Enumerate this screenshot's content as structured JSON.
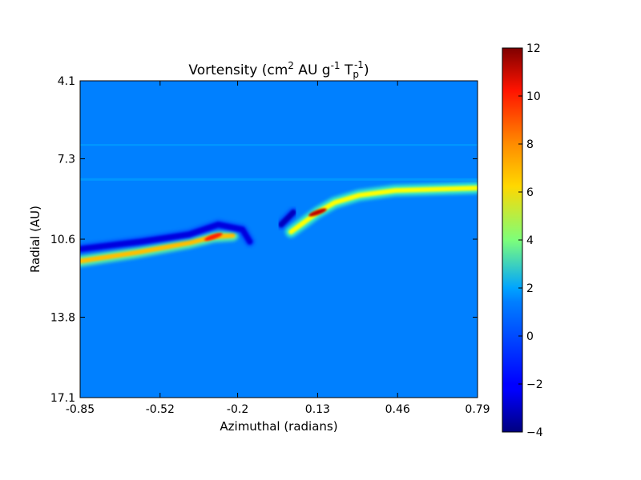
{
  "chart_data": {
    "type": "heatmap",
    "title": {
      "prefix": "Vortensity (cm",
      "sup1": "2",
      "mid": " AU g",
      "sup2": "-1",
      "mid2": " T",
      "sub": "p",
      "sup3": "-1",
      "suffix": ")"
    },
    "xlabel": "Azimuthal (radians)",
    "ylabel": "Radial (AU)",
    "xlim": [
      -0.85,
      0.79
    ],
    "ylim": [
      4.1,
      17.1
    ],
    "y_inverted": true,
    "x_ticks": [
      {
        "value": -0.85,
        "label": "-0.85"
      },
      {
        "value": -0.52,
        "label": "-0.52"
      },
      {
        "value": -0.2,
        "label": "-0.2"
      },
      {
        "value": 0.13,
        "label": "0.13"
      },
      {
        "value": 0.46,
        "label": "0.46"
      },
      {
        "value": 0.79,
        "label": "0.79"
      }
    ],
    "y_ticks": [
      {
        "value": 4.1,
        "label": "4.1"
      },
      {
        "value": 7.3,
        "label": "7.3"
      },
      {
        "value": 10.6,
        "label": "10.6"
      },
      {
        "value": 13.8,
        "label": "13.8"
      },
      {
        "value": 17.1,
        "label": "17.1"
      }
    ],
    "colorbar": {
      "colormap": "jet",
      "min": -4,
      "max": 12,
      "ticks": [
        {
          "value": 12,
          "label": "12"
        },
        {
          "value": 10,
          "label": "10"
        },
        {
          "value": 8,
          "label": "8"
        },
        {
          "value": 6,
          "label": "6"
        },
        {
          "value": 4,
          "label": "4"
        },
        {
          "value": 2,
          "label": "2"
        },
        {
          "value": 0,
          "label": "0"
        },
        {
          "value": -2,
          "label": "−2"
        },
        {
          "value": -4,
          "label": "−4"
        }
      ]
    },
    "background_value": 0.3,
    "features": [
      {
        "desc": "main spiral arm high-vortensity streak",
        "x": [
          -0.85,
          -0.62,
          -0.4,
          -0.3,
          -0.22
        ],
        "y": [
          11.5,
          11.15,
          10.75,
          10.5,
          10.45
        ],
        "value": 7,
        "peak_value": 9.5
      },
      {
        "desc": "low-vortensity ridge left",
        "x": [
          -0.85,
          -0.6,
          -0.4,
          -0.28,
          -0.18,
          -0.15
        ],
        "y": [
          11.0,
          10.7,
          10.4,
          10.0,
          10.2,
          10.7
        ],
        "value": -2.5
      },
      {
        "desc": "central blob",
        "x": [
          -0.02,
          0.03
        ],
        "y": [
          10.0,
          9.5
        ],
        "value": -3
      },
      {
        "desc": "right spiral peak",
        "x": [
          0.02,
          0.13,
          0.2,
          0.3,
          0.45,
          0.79
        ],
        "y": [
          10.3,
          9.5,
          9.1,
          8.8,
          8.6,
          8.5
        ],
        "value": 6,
        "peak_value": 11
      }
    ]
  }
}
